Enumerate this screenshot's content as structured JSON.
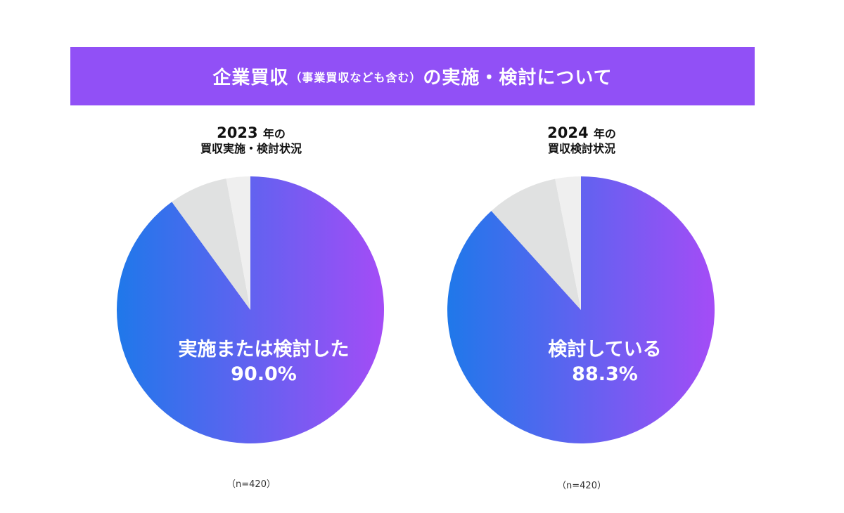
{
  "banner": {
    "title_main": "企業買収",
    "title_paren": "（事業買収なども含む）",
    "title_rest": "の実施・検討について",
    "color": "#9150f6"
  },
  "colors": {
    "gradient_start": "#1f78ea",
    "gradient_end": "#a44cf6",
    "slice_gray": "#e0e1e1",
    "slice_light": "#efefef"
  },
  "chart_data": [
    {
      "type": "pie",
      "title_year": "2023",
      "title_year_suffix": "年の",
      "title_line2": "買収実施・検討状況",
      "slices": [
        {
          "label": "実施または検討した",
          "value": 90.0,
          "display": "90.0%"
        },
        {
          "label": "",
          "value": 7.1
        },
        {
          "label": "",
          "value": 2.9
        }
      ],
      "n_note": "（n=420）"
    },
    {
      "type": "pie",
      "title_year": "2024",
      "title_year_suffix": "年の",
      "title_line2": "買収検討状況",
      "slices": [
        {
          "label": "検討している",
          "value": 88.3,
          "display": "88.3%"
        },
        {
          "label": "",
          "value": 8.6
        },
        {
          "label": "",
          "value": 3.1
        }
      ],
      "n_note": "（n=420）"
    }
  ]
}
